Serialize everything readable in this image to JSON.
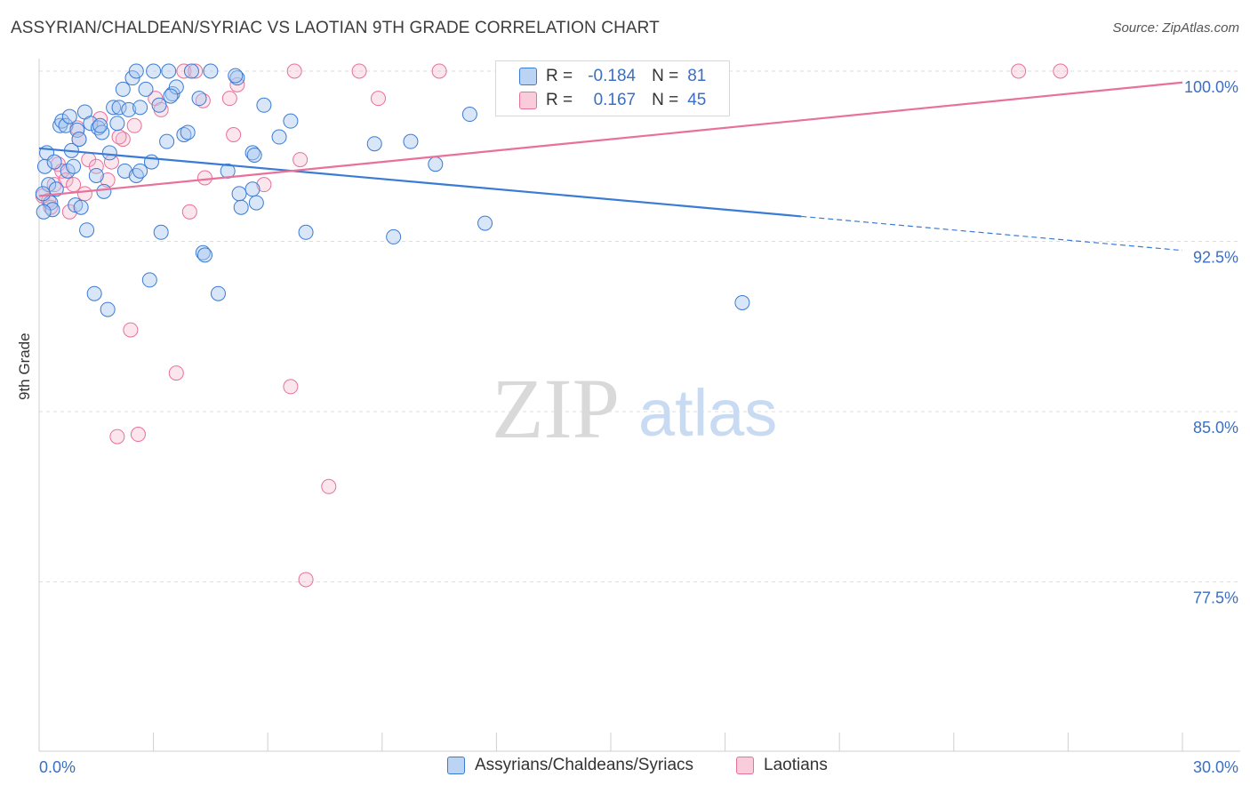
{
  "title": "ASSYRIAN/CHALDEAN/SYRIAC VS LAOTIAN 9TH GRADE CORRELATION CHART",
  "source": "Source: ZipAtlas.com",
  "watermark": {
    "zip": "ZIP",
    "atlas": "atlas"
  },
  "colors": {
    "blue": "#3a7bd5",
    "blue_fill": "#a9c8f0",
    "pink": "#e8709a",
    "pink_fill": "#f4b8cc",
    "axis_text": "#3a6fc4",
    "grid": "#dddddd"
  },
  "legend": {
    "rows": [
      {
        "r_label": "R =",
        "r_value": "-0.184",
        "n_label": "N =",
        "n_value": "81"
      },
      {
        "r_label": "R =",
        "r_value": "0.167",
        "n_label": "N =",
        "n_value": "45"
      }
    ]
  },
  "bottom_legend": {
    "blue": "Assyrians/Chaldeans/Syriacs",
    "pink": "Laotians"
  },
  "chart_data": {
    "type": "scatter",
    "title": "ASSYRIAN/CHALDEAN/SYRIAC VS LAOTIAN 9TH GRADE CORRELATION CHART",
    "xlabel": "",
    "ylabel": "9th Grade",
    "xlim": [
      0,
      30
    ],
    "ylim": [
      70.3,
      101.0
    ],
    "x_tick_labels": [
      "0.0%",
      "30.0%"
    ],
    "y_ticks": [
      100.0,
      92.5,
      85.0,
      77.5
    ],
    "y_tick_labels": [
      "100.0%",
      "92.5%",
      "85.0%",
      "77.5%"
    ],
    "grid": true,
    "legend_position": "top-center",
    "series": [
      {
        "name": "Assyrians/Chaldeans/Syriacs",
        "color": "#3a7bd5",
        "trend": {
          "x": [
            0,
            20.0,
            30.0
          ],
          "y": [
            96.6,
            93.6,
            92.1
          ],
          "solid_until": 20.0
        },
        "points": [
          [
            0.15,
            95.8
          ],
          [
            0.2,
            96.4
          ],
          [
            0.25,
            95.0
          ],
          [
            0.3,
            94.2
          ],
          [
            0.35,
            93.9
          ],
          [
            0.4,
            96.0
          ],
          [
            0.45,
            94.8
          ],
          [
            0.55,
            97.6
          ],
          [
            0.6,
            97.8
          ],
          [
            0.7,
            97.6
          ],
          [
            0.75,
            95.6
          ],
          [
            0.8,
            98.0
          ],
          [
            0.85,
            96.5
          ],
          [
            0.9,
            95.8
          ],
          [
            0.95,
            94.1
          ],
          [
            1.0,
            97.4
          ],
          [
            1.05,
            97.0
          ],
          [
            1.1,
            94.0
          ],
          [
            1.2,
            98.2
          ],
          [
            1.25,
            93.0
          ],
          [
            1.35,
            97.7
          ],
          [
            1.45,
            90.2
          ],
          [
            1.5,
            95.4
          ],
          [
            1.55,
            97.5
          ],
          [
            1.65,
            97.3
          ],
          [
            1.7,
            94.7
          ],
          [
            1.8,
            89.5
          ],
          [
            1.85,
            96.4
          ],
          [
            1.95,
            98.4
          ],
          [
            2.05,
            97.7
          ],
          [
            2.1,
            98.4
          ],
          [
            2.2,
            99.2
          ],
          [
            2.25,
            95.6
          ],
          [
            2.35,
            98.3
          ],
          [
            2.45,
            99.7
          ],
          [
            2.55,
            95.4
          ],
          [
            2.65,
            95.6
          ],
          [
            2.65,
            98.4
          ],
          [
            2.8,
            99.2
          ],
          [
            2.9,
            90.8
          ],
          [
            3.0,
            100.0
          ],
          [
            3.15,
            98.5
          ],
          [
            3.2,
            92.9
          ],
          [
            3.35,
            96.9
          ],
          [
            3.4,
            100.0
          ],
          [
            3.5,
            99.0
          ],
          [
            3.6,
            99.3
          ],
          [
            3.8,
            97.2
          ],
          [
            3.9,
            97.3
          ],
          [
            4.0,
            100.0
          ],
          [
            4.2,
            98.8
          ],
          [
            4.3,
            92.0
          ],
          [
            4.35,
            91.9
          ],
          [
            4.5,
            100.0
          ],
          [
            4.7,
            90.2
          ],
          [
            4.95,
            95.6
          ],
          [
            5.2,
            99.7
          ],
          [
            5.25,
            94.6
          ],
          [
            5.3,
            94.0
          ],
          [
            5.6,
            96.4
          ],
          [
            5.6,
            94.8
          ],
          [
            5.7,
            94.2
          ],
          [
            5.65,
            96.3
          ],
          [
            5.9,
            98.5
          ],
          [
            6.3,
            97.1
          ],
          [
            6.6,
            97.8
          ],
          [
            7.0,
            92.9
          ],
          [
            8.8,
            96.8
          ],
          [
            9.3,
            92.7
          ],
          [
            9.75,
            96.9
          ],
          [
            10.4,
            95.9
          ],
          [
            11.3,
            98.1
          ],
          [
            11.7,
            93.3
          ],
          [
            18.45,
            89.8
          ],
          [
            0.1,
            94.6
          ],
          [
            0.12,
            93.8
          ],
          [
            1.6,
            97.6
          ],
          [
            2.95,
            96.0
          ],
          [
            3.45,
            98.9
          ],
          [
            5.15,
            99.8
          ],
          [
            2.55,
            100.0
          ]
        ]
      },
      {
        "name": "Laotians",
        "color": "#e8709a",
        "trend": {
          "x": [
            0,
            30.0
          ],
          "y": [
            94.5,
            99.5
          ],
          "solid_until": 30.0
        },
        "points": [
          [
            0.1,
            94.5
          ],
          [
            0.25,
            94.3
          ],
          [
            0.4,
            95.0
          ],
          [
            0.5,
            95.9
          ],
          [
            0.6,
            95.6
          ],
          [
            0.7,
            95.2
          ],
          [
            0.8,
            93.8
          ],
          [
            0.9,
            95.0
          ],
          [
            1.0,
            97.5
          ],
          [
            1.2,
            94.6
          ],
          [
            1.3,
            96.1
          ],
          [
            1.5,
            95.8
          ],
          [
            1.6,
            97.9
          ],
          [
            1.8,
            95.2
          ],
          [
            1.9,
            96.0
          ],
          [
            2.2,
            97.0
          ],
          [
            2.5,
            97.6
          ],
          [
            2.4,
            88.6
          ],
          [
            2.05,
            83.9
          ],
          [
            2.6,
            84.0
          ],
          [
            3.05,
            98.8
          ],
          [
            3.2,
            98.3
          ],
          [
            3.6,
            86.7
          ],
          [
            3.8,
            100.0
          ],
          [
            3.95,
            93.8
          ],
          [
            4.1,
            100.0
          ],
          [
            4.3,
            98.7
          ],
          [
            4.35,
            95.3
          ],
          [
            5.0,
            98.8
          ],
          [
            5.1,
            97.2
          ],
          [
            5.2,
            99.4
          ],
          [
            5.9,
            95.0
          ],
          [
            6.6,
            86.1
          ],
          [
            6.7,
            100.0
          ],
          [
            6.85,
            96.1
          ],
          [
            7.0,
            77.6
          ],
          [
            7.6,
            81.7
          ],
          [
            8.4,
            100.0
          ],
          [
            8.9,
            98.8
          ],
          [
            10.5,
            100.0
          ],
          [
            25.7,
            100.0
          ],
          [
            26.8,
            100.0
          ],
          [
            0.3,
            94.0
          ],
          [
            1.05,
            97.0
          ],
          [
            2.1,
            97.1
          ]
        ]
      }
    ]
  }
}
